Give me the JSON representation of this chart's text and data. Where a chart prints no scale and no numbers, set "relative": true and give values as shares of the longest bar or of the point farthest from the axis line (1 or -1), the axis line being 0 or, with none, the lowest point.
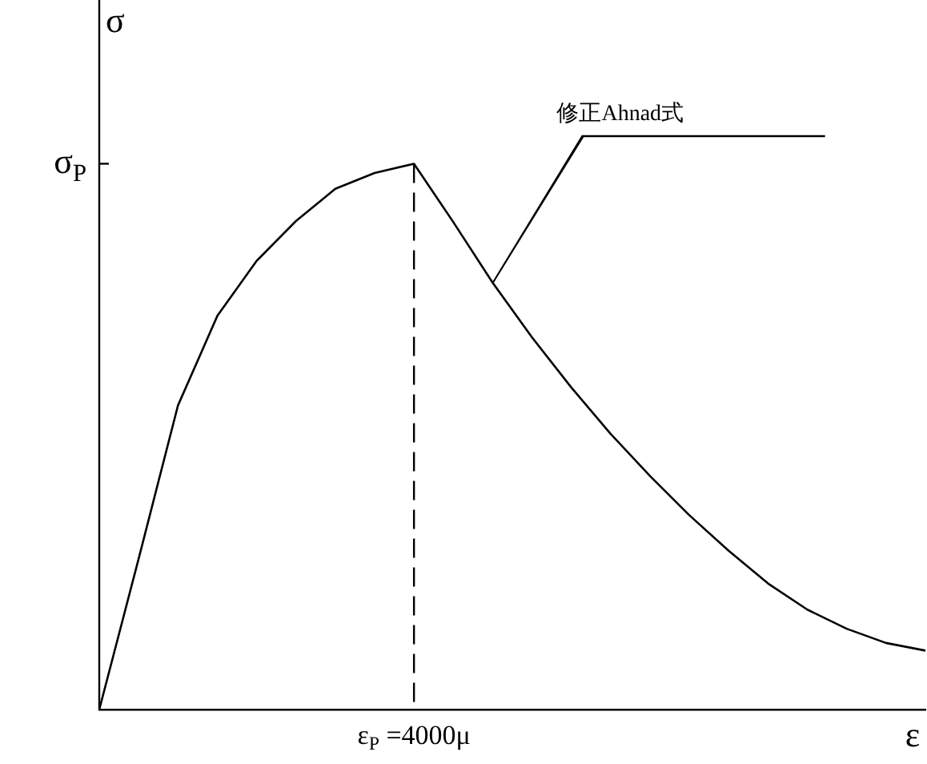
{
  "chart_data": {
    "type": "line",
    "relative": true,
    "xlabel": "ε",
    "ylabel": "σ",
    "categories": [
      null,
      null,
      null,
      null,
      null,
      null,
      null,
      null,
      null,
      null,
      null,
      null,
      null,
      null,
      null,
      null,
      null,
      null,
      null,
      null,
      null,
      null
    ],
    "series": [
      {
        "color": "#000000",
        "values": [
          0,
          0.276,
          0.557,
          0.721,
          0.822,
          0.895,
          0.954,
          0.983,
          1,
          0.893,
          0.782,
          0.682,
          0.59,
          0.505,
          0.428,
          0.356,
          0.291,
          0.231,
          0.183,
          0.148,
          0.122,
          0.108
        ]
      }
    ],
    "ref_lines": [
      {
        "axis": "x",
        "label": "ε$_{P}$ =4000μ",
        "line_style": "dashed"
      }
    ],
    "annotations": [
      "σ$_{P}$",
      "修正Ahnad式"
    ],
    "grid": false,
    "legend": false,
    "marker": "none",
    "line_style": "solid"
  }
}
